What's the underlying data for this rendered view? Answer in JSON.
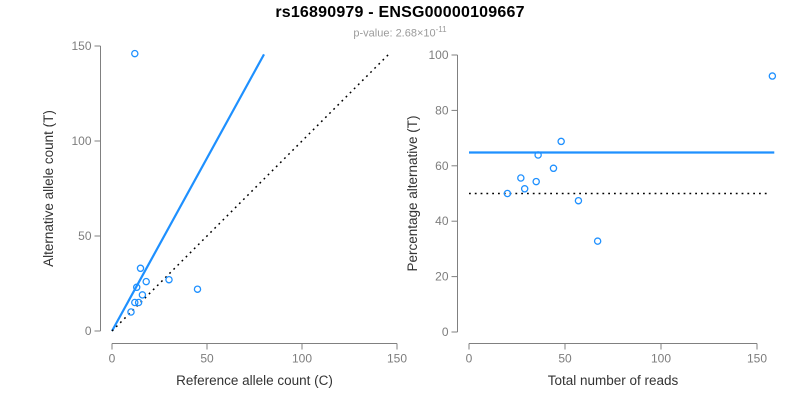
{
  "figure": {
    "title": "rs16890979 - ENSG00000109667",
    "subtitle_prefix": "p-value: 2.68×10",
    "subtitle_exponent": "-11"
  },
  "colors": {
    "point_blue": "#1E90FF",
    "line_blue": "#1E90FF",
    "dotted_black": "#000000",
    "axis_gray": "#808080",
    "tick_label_gray": "#7d7d7d",
    "axis_title_dark": "#333333",
    "title_black": "#000000",
    "subtitle_gray": "#9b9b9b",
    "background": "#ffffff"
  },
  "chart_data": [
    {
      "type": "scatter",
      "position": "left",
      "xlabel": "Reference allele count (C)",
      "ylabel": "Alternative allele count (T)",
      "xlim": [
        0,
        150
      ],
      "ylim": [
        0,
        150
      ],
      "xticks": [
        0,
        50,
        100,
        150
      ],
      "yticks": [
        0,
        50,
        100,
        150
      ],
      "grid": false,
      "legend": "none",
      "marker": "open-circle",
      "point_color": "#1E90FF",
      "points": [
        [
          12,
          146
        ],
        [
          15,
          33
        ],
        [
          18,
          26
        ],
        [
          13,
          23
        ],
        [
          16,
          19
        ],
        [
          14,
          15
        ],
        [
          12,
          15
        ],
        [
          10,
          10
        ],
        [
          30,
          27
        ],
        [
          45,
          22
        ]
      ],
      "lines": [
        {
          "name": "fit-line",
          "style": "solid",
          "color": "#1E90FF",
          "x1": 0,
          "y1": 0,
          "x2": 80,
          "y2": 145.6
        },
        {
          "name": "identity-line",
          "style": "dotted",
          "color": "#000000",
          "x1": 0,
          "y1": 0,
          "x2": 146,
          "y2": 146
        }
      ]
    },
    {
      "type": "scatter",
      "position": "right",
      "xlabel": "Total number of reads",
      "ylabel": "Percentage alternative (T)",
      "xlim": [
        0,
        160
      ],
      "ylim": [
        0,
        100
      ],
      "xticks": [
        0,
        50,
        100,
        150
      ],
      "yticks": [
        0,
        20,
        40,
        60,
        80,
        100
      ],
      "grid": false,
      "legend": "none",
      "marker": "open-circle",
      "point_color": "#1E90FF",
      "points": [
        [
          158,
          92.4
        ],
        [
          48,
          68.8
        ],
        [
          36,
          63.9
        ],
        [
          44,
          59.1
        ],
        [
          27,
          55.6
        ],
        [
          35,
          54.3
        ],
        [
          29,
          51.7
        ],
        [
          20,
          50.0
        ],
        [
          57,
          47.4
        ],
        [
          67,
          32.8
        ]
      ],
      "lines": [
        {
          "name": "mean-percentage-line",
          "style": "solid",
          "color": "#1E90FF",
          "x1": 0,
          "y1": 64.8,
          "x2": 159,
          "y2": 64.8
        },
        {
          "name": "fifty-percent-line",
          "style": "dotted",
          "color": "#000000",
          "x1": 0,
          "y1": 50,
          "x2": 156,
          "y2": 50
        }
      ]
    }
  ]
}
